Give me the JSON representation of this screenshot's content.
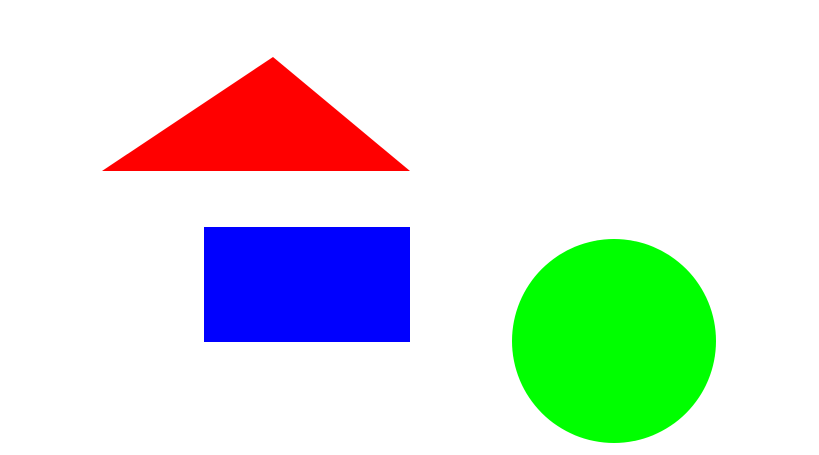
{
  "shapes": {
    "triangle": {
      "kind": "triangle",
      "color": "#ff0000"
    },
    "rectangle": {
      "kind": "rectangle",
      "color": "#0000ff"
    },
    "circle": {
      "kind": "circle",
      "color": "#00ff00"
    }
  },
  "background_color": "#ffffff"
}
